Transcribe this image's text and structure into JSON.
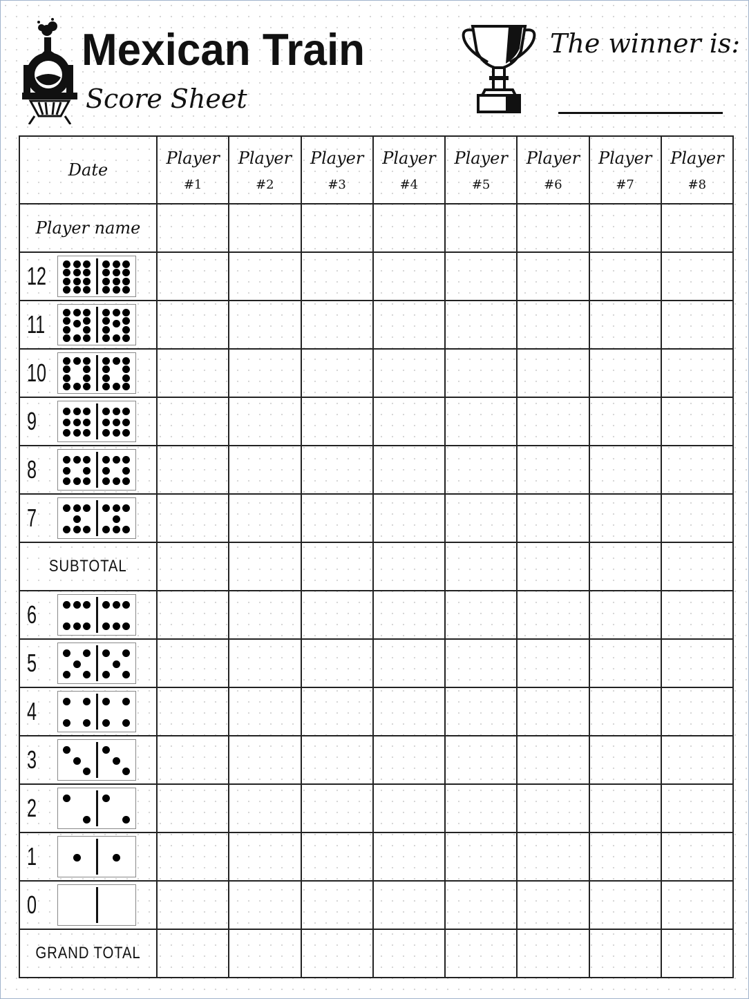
{
  "header": {
    "title": "Mexican Train",
    "subtitle": "Score Sheet",
    "winner_label": "The winner is:",
    "logo_icon": "steam-train-icon",
    "trophy_icon": "trophy-icon"
  },
  "table": {
    "date_label": "Date",
    "player_header": "Player",
    "player_numbers": [
      "#1",
      "#2",
      "#3",
      "#4",
      "#5",
      "#6",
      "#7",
      "#8"
    ],
    "player_name_label": "Player name",
    "rounds_top": [
      12,
      11,
      10,
      9,
      8,
      7
    ],
    "subtotal_label": "SUBTOTAL",
    "rounds_bottom": [
      6,
      5,
      4,
      3,
      2,
      1,
      0
    ],
    "grand_total_label": "GRAND TOTAL"
  },
  "colors": {
    "ink": "#111111",
    "grid_dots": "#d4d4d4"
  }
}
